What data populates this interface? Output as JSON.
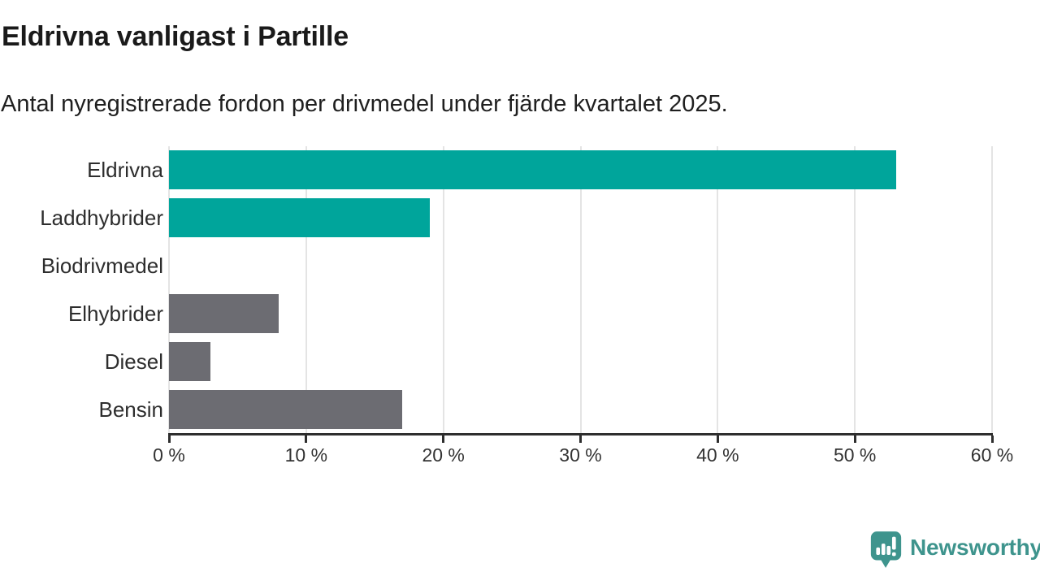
{
  "header": {
    "title": "Eldrivna vanligast i Partille",
    "subtitle": "Antal nyregistrerade fordon per drivmedel under fjärde kvartalet 2025."
  },
  "chart_data": {
    "type": "bar",
    "orientation": "horizontal",
    "title": "Eldrivna vanligast i Partille",
    "subtitle": "Antal nyregistrerade fordon per drivmedel under fjärde kvartalet 2025.",
    "categories": [
      "Eldrivna",
      "Laddhybrider",
      "Biodrivmedel",
      "Elhybrider",
      "Diesel",
      "Bensin"
    ],
    "values": [
      53,
      19,
      0,
      8,
      3,
      17
    ],
    "unit": "%",
    "bar_colors": [
      "#00a59b",
      "#00a59b",
      "#6c6c72",
      "#6c6c72",
      "#6c6c72",
      "#6c6c72"
    ],
    "xlim": [
      0,
      60
    ],
    "x_ticks": [
      0,
      10,
      20,
      30,
      40,
      50,
      60
    ],
    "tick_label_suffix": " %",
    "grid": true,
    "legend": false
  },
  "footer": {
    "brand": "Newsworthy"
  },
  "colors": {
    "accent_teal": "#00a59b",
    "neutral_gray": "#6c6c72",
    "brand_teal": "#3e948d",
    "axis": "#2e2e2e",
    "grid": "#e4e4e4",
    "title_text": "#1a1a1a",
    "body_text": "#333333"
  }
}
